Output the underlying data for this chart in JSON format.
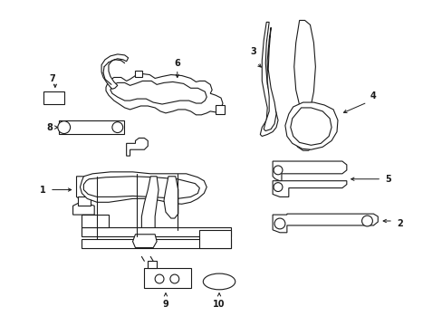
{
  "background_color": "#ffffff",
  "line_color": "#1a1a1a",
  "line_width": 0.8,
  "fig_width": 4.89,
  "fig_height": 3.6,
  "dpi": 100
}
